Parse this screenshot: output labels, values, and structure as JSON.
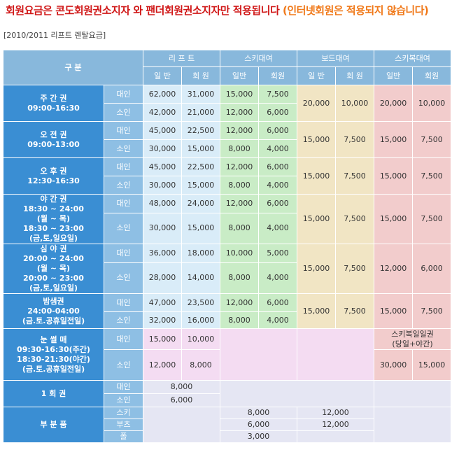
{
  "notice": {
    "part1": "회원요금은 콘도회원권소지자 와  팬더회원권소지자만 적용됩니다",
    "part2": "(인터넷회원은 적용되지 않습니다)"
  },
  "season_label": "[2010/2011 리프트 렌탈요금]",
  "header": {
    "category": "구 분",
    "lift": "리 프 트",
    "ski_rental": "스키대여",
    "board_rental": "보드대여",
    "skiwear_rental": "스키복대여",
    "general": "일 반",
    "member": "회 원",
    "general2": "일반",
    "member2": "회원"
  },
  "age": {
    "adult": "대인",
    "child": "소인"
  },
  "tickets": {
    "weekly": {
      "name": "주 간 권",
      "time": "09:00-16:30"
    },
    "morning": {
      "name": "오 전 권",
      "time": "09:00-13:00"
    },
    "afternoon": {
      "name": "오 후 권",
      "time": "12:30-16:30"
    },
    "night": {
      "name": "야 간 권",
      "l1": "18:30 ~ 24:00",
      "l2": "(월 ~ 목)",
      "l3": "18:30 ~ 23:00",
      "l4": "(금,토,일요일)"
    },
    "late": {
      "name": "심 야 권",
      "l1": "20:00 ~ 24:00",
      "l2": "(월 ~ 목)",
      "l3": "20:00 ~ 23:00",
      "l4": "(금,토,일요일)"
    },
    "allnight": {
      "name": "밤샘권",
      "l1": "24:00-04:00",
      "l2": "(금.토.공휴일전일)"
    },
    "snowflower": {
      "name": "눈 썰 매",
      "l1": "09:30-16:30(주간)",
      "l2": "18:30-21:30(야간)",
      "l3": "(금.토.공휴일전일)"
    },
    "single": {
      "name": "1 회 권"
    },
    "parts": {
      "name": "부 분 품"
    }
  },
  "prices": {
    "weekly": {
      "adult": {
        "lift_gen": "62,000",
        "lift_mem": "31,000",
        "ski_gen": "15,000",
        "ski_mem": "7,500"
      },
      "child": {
        "lift_gen": "42,000",
        "lift_mem": "21,000",
        "ski_gen": "12,000",
        "ski_mem": "6,000"
      },
      "board_gen": "20,000",
      "board_mem": "10,000",
      "wear_gen": "20,000",
      "wear_mem": "10,000"
    },
    "morning": {
      "adult": {
        "lift_gen": "45,000",
        "lift_mem": "22,500",
        "ski_gen": "12,000",
        "ski_mem": "6,000"
      },
      "child": {
        "lift_gen": "30,000",
        "lift_mem": "15,000",
        "ski_gen": "8,000",
        "ski_mem": "4,000"
      },
      "board_gen": "15,000",
      "board_mem": "7,500",
      "wear_gen": "15,000",
      "wear_mem": "7,500"
    },
    "afternoon": {
      "adult": {
        "lift_gen": "45,000",
        "lift_mem": "22,500",
        "ski_gen": "12,000",
        "ski_mem": "6,000"
      },
      "child": {
        "lift_gen": "30,000",
        "lift_mem": "15,000",
        "ski_gen": "8,000",
        "ski_mem": "4,000"
      },
      "board_gen": "15,000",
      "board_mem": "7,500",
      "wear_gen": "15,000",
      "wear_mem": "7,500"
    },
    "night": {
      "adult": {
        "lift_gen": "48,000",
        "lift_mem": "24,000",
        "ski_gen": "12,000",
        "ski_mem": "6,000"
      },
      "child": {
        "lift_gen": "30,000",
        "lift_mem": "15,000",
        "ski_gen": "8,000",
        "ski_mem": "4,000"
      },
      "board_gen": "15,000",
      "board_mem": "7,500",
      "wear_gen": "15,000",
      "wear_mem": "7,500"
    },
    "late": {
      "adult": {
        "lift_gen": "36,000",
        "lift_mem": "18,000",
        "ski_gen": "10,000",
        "ski_mem": "5,000"
      },
      "child": {
        "lift_gen": "28,000",
        "lift_mem": "14,000",
        "ski_gen": "8,000",
        "ski_mem": "4,000"
      },
      "board_gen": "15,000",
      "board_mem": "7,500",
      "wear_gen": "12,000",
      "wear_mem": "6,000"
    },
    "allnight": {
      "adult": {
        "lift_gen": "47,000",
        "lift_mem": "23,500",
        "ski_gen": "12,000",
        "ski_mem": "6,000"
      },
      "child": {
        "lift_gen": "32,000",
        "lift_mem": "16,000",
        "ski_gen": "8,000",
        "ski_mem": "4,000"
      },
      "board_gen": "15,000",
      "board_mem": "7,500",
      "wear_gen": "15,000",
      "wear_mem": "7,500"
    },
    "snowflower": {
      "adult": {
        "gen": "15,000",
        "mem": "10,000"
      },
      "child": {
        "gen": "12,000",
        "mem": "8,000"
      },
      "wear_note_l1": "스키복일일권",
      "wear_note_l2": "(당일+야간)",
      "wear_gen": "30,000",
      "wear_mem": "15,000"
    },
    "single": {
      "adult": "8,000",
      "child": "6,000"
    },
    "parts": {
      "ski_label": "스키",
      "boots_label": "부츠",
      "pole_label": "폴",
      "ski_ski": "8,000",
      "ski_board": "12,000",
      "boots_ski": "6,000",
      "boots_board": "12,000",
      "pole_ski": "3,000"
    }
  }
}
